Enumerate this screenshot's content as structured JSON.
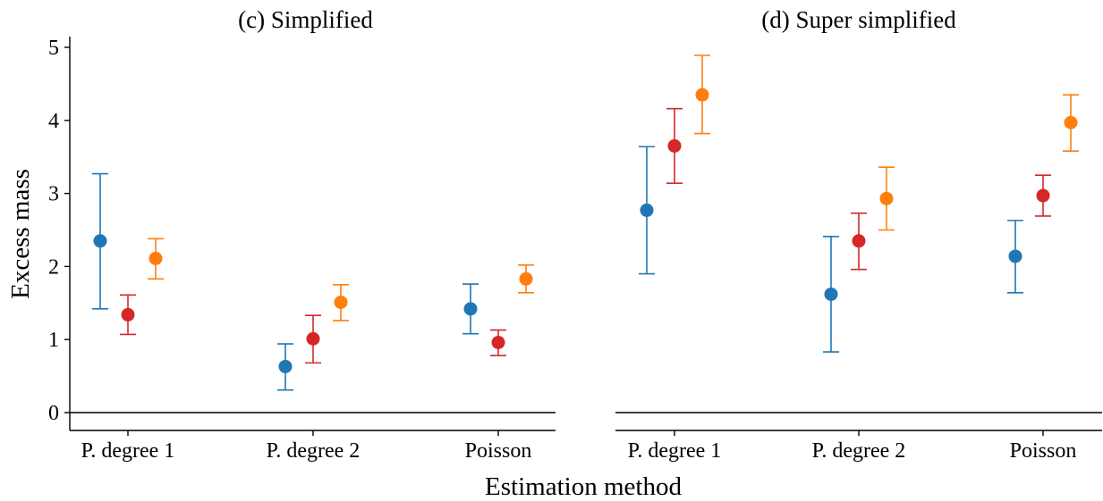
{
  "figure": {
    "xlabel": "Estimation method",
    "ylabel": "Excess mass"
  },
  "chart_data": [
    {
      "type": "scatter",
      "subtype": "point-with-error-bars",
      "title": "(c) Simplified",
      "categories": [
        "P. degree 1",
        "P. degree 2",
        "Poisson"
      ],
      "ylim": [
        -0.2,
        5.15
      ],
      "yticks": [
        0,
        1,
        2,
        3,
        4,
        5
      ],
      "reference_line_y": 0,
      "grid": false,
      "series": [
        {
          "color": "#1f77b4",
          "values": [
            2.35,
            0.63,
            1.42
          ],
          "lower": [
            1.42,
            0.31,
            1.08
          ],
          "upper": [
            3.27,
            0.94,
            1.76
          ]
        },
        {
          "color": "#d62728",
          "values": [
            1.34,
            1.01,
            0.96
          ],
          "lower": [
            1.07,
            0.68,
            0.78
          ],
          "upper": [
            1.61,
            1.33,
            1.13
          ]
        },
        {
          "color": "#ff7f0e",
          "values": [
            2.11,
            1.51,
            1.83
          ],
          "lower": [
            1.83,
            1.26,
            1.64
          ],
          "upper": [
            2.38,
            1.75,
            2.02
          ]
        }
      ]
    },
    {
      "type": "scatter",
      "subtype": "point-with-error-bars",
      "title": "(d) Super simplified",
      "categories": [
        "P. degree 1",
        "P. degree 2",
        "Poisson"
      ],
      "ylim": [
        -0.2,
        5.15
      ],
      "reference_line_y": 0,
      "grid": false,
      "series": [
        {
          "color": "#1f77b4",
          "values": [
            2.77,
            1.62,
            2.14
          ],
          "lower": [
            1.9,
            0.83,
            1.64
          ],
          "upper": [
            3.64,
            2.41,
            2.63
          ]
        },
        {
          "color": "#d62728",
          "values": [
            3.65,
            2.35,
            2.97
          ],
          "lower": [
            3.14,
            1.96,
            2.69
          ],
          "upper": [
            4.16,
            2.73,
            3.25
          ]
        },
        {
          "color": "#ff7f0e",
          "values": [
            4.35,
            2.93,
            3.97
          ],
          "lower": [
            3.82,
            2.5,
            3.58
          ],
          "upper": [
            4.89,
            3.36,
            4.35
          ]
        }
      ]
    }
  ]
}
